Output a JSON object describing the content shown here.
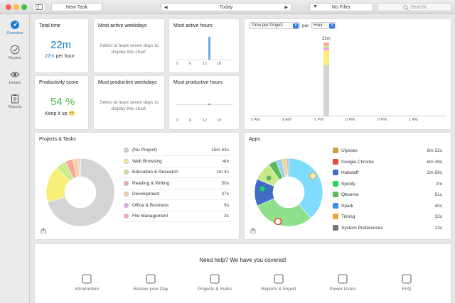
{
  "toolbar": {
    "new_task": "New Task",
    "date": "Today",
    "filter": "No Filter",
    "search_placeholder": "Search"
  },
  "sidebar": {
    "items": [
      {
        "label": "Overview",
        "icon": "gauge-icon",
        "active": true
      },
      {
        "label": "Review",
        "icon": "check-circle-icon",
        "active": false
      },
      {
        "label": "Details",
        "icon": "eye-icon",
        "active": false
      },
      {
        "label": "Reports",
        "icon": "clipboard-icon",
        "active": false
      }
    ]
  },
  "cards": {
    "total_time": {
      "title": "Total time",
      "value": "22m",
      "rate_value": "22m",
      "rate_label": "per hour"
    },
    "productivity": {
      "title": "Productivity score",
      "value": "54 %",
      "message": "Keep it up",
      "emoji": "😁"
    },
    "active_weekdays": {
      "title": "Most active weekdays",
      "message": "Select at least seven days to display this chart."
    },
    "productive_weekdays": {
      "title": "Most productive weekdays",
      "message": "Select at least seven days to display this chart."
    },
    "active_hours": {
      "title": "Most active hours",
      "ticks": [
        "0",
        "6",
        "12",
        "18"
      ]
    },
    "productive_hours": {
      "title": "Most productive hours",
      "ticks": [
        "0",
        "6",
        "12",
        "18"
      ]
    },
    "time_per": {
      "select1": "Time per Project",
      "per": "per",
      "select2": "Hour",
      "bar_label": "22m",
      "ticks": [
        "5 AM",
        "9 AM",
        "1 PM",
        "5 PM",
        "9 PM",
        "1 AM"
      ]
    }
  },
  "projects": {
    "title": "Projects & Tasks",
    "items": [
      {
        "label": "(No Project)",
        "value": "15m 53s",
        "color": "#d4d4d4"
      },
      {
        "label": "Web Browsing",
        "value": "4m",
        "color": "#f8ee7a"
      },
      {
        "label": "Education & Research",
        "value": "1m 4s",
        "color": "#cdeb8b"
      },
      {
        "label": "Reading & Writing",
        "value": "50s",
        "color": "#f7a8a3"
      },
      {
        "label": "Development",
        "value": "37s",
        "color": "#f6d39b"
      },
      {
        "label": "Office & Business",
        "value": "9s",
        "color": "#e9a3ef"
      },
      {
        "label": "File Management",
        "value": "3s",
        "color": "#f7a8a3"
      }
    ]
  },
  "apps": {
    "title": "Apps",
    "items": [
      {
        "label": "Ulysses",
        "value": "8m 52s",
        "icon": "butterfly-icon",
        "color": "#c9a23a"
      },
      {
        "label": "Google Chrome",
        "value": "6m 49s",
        "icon": "chrome-icon",
        "color": "#e24a3b"
      },
      {
        "label": "Hubstaff",
        "value": "2m 56s",
        "icon": "hubstaff-icon",
        "color": "#3f6cc7"
      },
      {
        "label": "Spotify",
        "value": "2m",
        "icon": "spotify-icon",
        "color": "#1ed760"
      },
      {
        "label": "Qbserve",
        "value": "51s",
        "icon": "qbserve-icon",
        "color": "#5cb85c"
      },
      {
        "label": "Spark",
        "value": "40s",
        "icon": "spark-icon",
        "color": "#3b8de8"
      },
      {
        "label": "Timing",
        "value": "32s",
        "icon": "timing-icon",
        "color": "#f0a33a"
      },
      {
        "label": "System Preferences",
        "value": "13s",
        "icon": "gear-icon",
        "color": "#777777"
      }
    ]
  },
  "help": {
    "title": "Need help? We have you covered!",
    "items": [
      {
        "label": "Introduction",
        "icon": "airplane-icon"
      },
      {
        "label": "Review your Day",
        "icon": "check-circle-icon"
      },
      {
        "label": "Projects & Rules",
        "icon": "folder-icon"
      },
      {
        "label": "Reports & Export",
        "icon": "clipboard-icon"
      },
      {
        "label": "Power Users",
        "icon": "person-icon"
      },
      {
        "label": "FAQ",
        "icon": "question-icon"
      }
    ]
  }
}
